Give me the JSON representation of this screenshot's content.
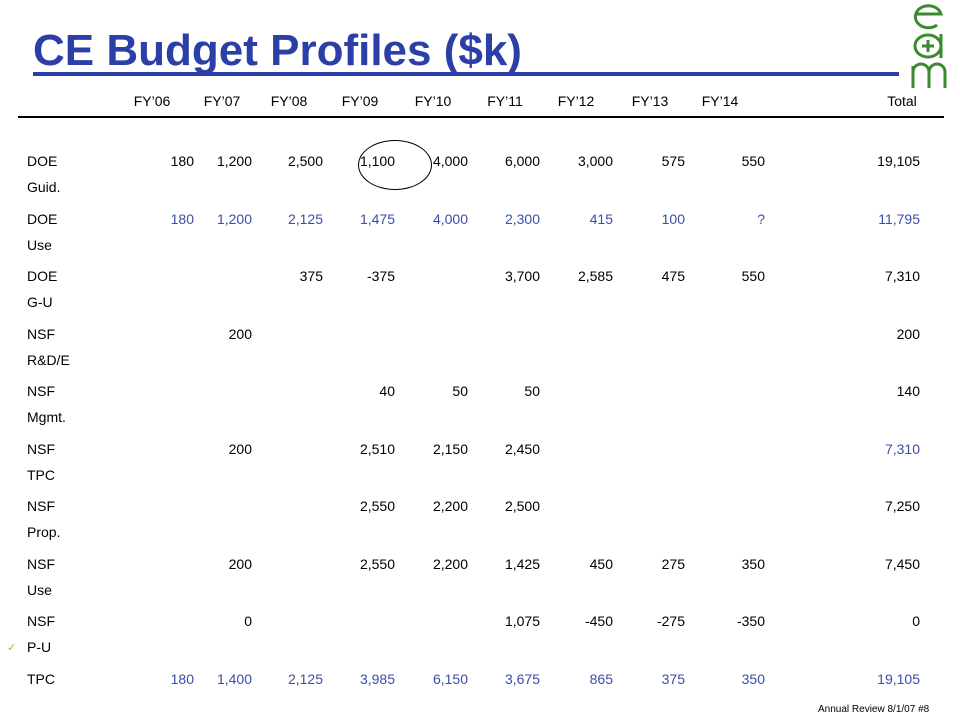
{
  "title": "CE Budget Profiles ($k)",
  "footer": "Annual Review 8/1/07  #8",
  "colors": {
    "title": "#2b3fa6",
    "blue_values": "#3b4dab"
  },
  "columns": [
    "FY’06",
    "FY’07",
    "FY’08",
    "FY’09",
    "FY’10",
    "FY’11",
    "FY’12",
    "FY’13",
    "FY’14",
    "Total"
  ],
  "rows": [
    {
      "l1": "DOE",
      "l2": "Guid.",
      "style": "black",
      "values": [
        "180",
        "1,200",
        "2,500",
        "1,100",
        "4,000",
        "6,000",
        "3,000",
        "575",
        "550",
        "19,105"
      ]
    },
    {
      "l1": "DOE",
      "l2": "Use",
      "style": "blue",
      "values": [
        "180",
        "1,200",
        "2,125",
        "1,475",
        "4,000",
        "2,300",
        "415",
        "100",
        "?",
        "11,795"
      ]
    },
    {
      "l1": "DOE",
      "l2": "G-U",
      "style": "black",
      "values": [
        "",
        "",
        "375",
        "-375",
        "",
        "3,700",
        "2,585",
        "475",
        "550",
        "7,310"
      ]
    },
    {
      "l1": "NSF",
      "l2": "R&D/E",
      "style": "black",
      "values": [
        "",
        "200",
        "",
        "",
        "",
        "",
        "",
        "",
        "",
        "200"
      ]
    },
    {
      "l1": "NSF",
      "l2": "Mgmt.",
      "style": "black",
      "values": [
        "",
        "",
        "",
        "40",
        "50",
        "50",
        "",
        "",
        "",
        "140"
      ]
    },
    {
      "l1": "NSF",
      "l2": "TPC",
      "style": "black",
      "total_blue": true,
      "values": [
        "",
        "200",
        "",
        "2,510",
        "2,150",
        "2,450",
        "",
        "",
        "",
        "7,310"
      ]
    },
    {
      "l1": "NSF",
      "l2": "Prop.",
      "style": "black",
      "values": [
        "",
        "",
        "",
        "2,550",
        "2,200",
        "2,500",
        "",
        "",
        "",
        "7,250"
      ]
    },
    {
      "l1": "NSF",
      "l2": "Use",
      "style": "black",
      "values": [
        "",
        "200",
        "",
        "2,550",
        "2,200",
        "1,425",
        "450",
        "275",
        "350",
        "7,450"
      ]
    },
    {
      "l1": "NSF",
      "l2": "P-U",
      "style": "black",
      "values": [
        "",
        "0",
        "",
        "",
        "",
        "1,075",
        "-450",
        "-275",
        "-350",
        "0"
      ]
    },
    {
      "l1": "TPC",
      "l2": "",
      "style": "blue",
      "values": [
        "180",
        "1,400",
        "2,125",
        "3,985",
        "6,150",
        "3,675",
        "865",
        "375",
        "350",
        "19,105"
      ]
    }
  ]
}
